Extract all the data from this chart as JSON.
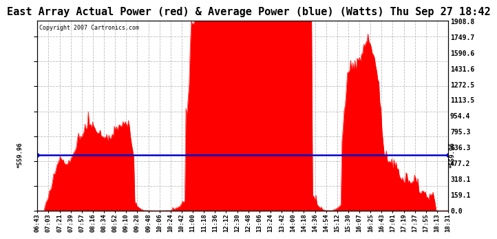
{
  "title": "East Array Actual Power (red) & Average Power (blue) (Watts) Thu Sep 27 18:42",
  "copyright": "Copyright 2007 Cartronics.com",
  "avg_power": 559.96,
  "y_max": 1908.8,
  "y_ticks": [
    0.0,
    159.1,
    318.1,
    477.2,
    636.3,
    795.3,
    954.4,
    1113.5,
    1272.5,
    1431.6,
    1590.6,
    1749.7,
    1908.8
  ],
  "x_labels": [
    "06:43",
    "07:03",
    "07:21",
    "07:39",
    "07:57",
    "08:16",
    "08:34",
    "08:52",
    "09:10",
    "09:28",
    "09:48",
    "10:06",
    "10:24",
    "10:42",
    "11:00",
    "11:18",
    "11:36",
    "12:12",
    "12:30",
    "12:48",
    "13:06",
    "13:24",
    "13:42",
    "14:00",
    "14:18",
    "14:36",
    "14:54",
    "15:12",
    "15:30",
    "16:07",
    "16:25",
    "16:43",
    "17:01",
    "17:19",
    "17:37",
    "17:55",
    "18:13",
    "18:31"
  ],
  "background_color": "#ffffff",
  "grid_color": "#bbbbbb",
  "line_color_red": "#ff0000",
  "line_color_blue": "#0000cc",
  "title_fontsize": 11,
  "avg_label": "559.96"
}
